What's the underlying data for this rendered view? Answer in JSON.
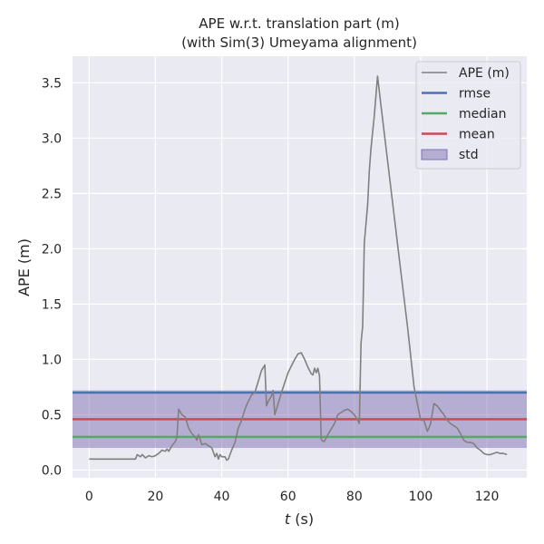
{
  "chart_data": {
    "type": "line",
    "title": "APE w.r.t. translation part (m)",
    "subtitle": "(with Sim(3) Umeyama alignment)",
    "xlabel_italic": "t",
    "xlabel_unit": " (s)",
    "ylabel": "APE (m)",
    "xlim": [
      -5,
      132
    ],
    "ylim": [
      -0.07,
      3.74
    ],
    "xticks": [
      0,
      20,
      40,
      60,
      80,
      100,
      120
    ],
    "yticks": [
      0.0,
      0.5,
      1.0,
      1.5,
      2.0,
      2.5,
      3.0,
      3.5
    ],
    "ytick_labels": [
      "0.0",
      "0.5",
      "1.0",
      "1.5",
      "2.0",
      "2.5",
      "3.0",
      "3.5"
    ],
    "grid": true,
    "legend_position": "top-right",
    "series": [
      {
        "name": "APE (m)",
        "color": "#808080",
        "x": [
          0,
          5,
          10,
          14,
          14.5,
          15.5,
          16,
          17,
          18,
          19,
          20,
          21,
          22,
          23,
          23.5,
          24,
          25,
          26,
          26.5,
          27,
          28,
          29,
          30,
          31,
          32,
          32.5,
          33,
          34,
          35,
          36,
          37,
          38,
          38.5,
          39,
          39.5,
          40,
          41,
          41.5,
          42,
          43,
          44,
          45,
          46,
          47,
          48,
          49,
          50,
          51,
          52,
          53,
          53.5,
          54,
          55,
          55.5,
          56,
          58,
          60,
          62,
          63,
          64,
          65,
          66,
          67,
          67.5,
          68,
          68.5,
          69,
          69.5,
          70,
          70.5,
          71,
          72,
          73,
          74,
          75,
          76,
          77,
          78,
          79,
          80,
          81,
          81.5,
          82,
          82.5,
          83,
          84,
          84.5,
          85,
          86,
          87,
          88,
          90,
          92,
          94,
          96,
          98,
          100,
          101,
          102,
          102.5,
          103,
          104,
          105,
          106,
          107,
          108,
          109,
          110,
          111,
          112,
          113,
          114,
          115,
          116,
          117,
          118,
          119,
          120,
          121,
          122,
          123,
          124,
          125,
          126
        ],
        "y": [
          0.1,
          0.1,
          0.1,
          0.1,
          0.14,
          0.12,
          0.14,
          0.11,
          0.13,
          0.12,
          0.13,
          0.15,
          0.18,
          0.17,
          0.19,
          0.17,
          0.22,
          0.26,
          0.3,
          0.55,
          0.5,
          0.48,
          0.38,
          0.33,
          0.3,
          0.27,
          0.32,
          0.23,
          0.24,
          0.22,
          0.2,
          0.12,
          0.15,
          0.1,
          0.14,
          0.12,
          0.12,
          0.09,
          0.1,
          0.18,
          0.25,
          0.38,
          0.45,
          0.55,
          0.62,
          0.68,
          0.7,
          0.8,
          0.9,
          0.95,
          0.58,
          0.62,
          0.67,
          0.72,
          0.5,
          0.7,
          0.88,
          1.0,
          1.05,
          1.06,
          1.0,
          0.93,
          0.87,
          0.86,
          0.92,
          0.88,
          0.92,
          0.85,
          0.28,
          0.26,
          0.26,
          0.32,
          0.37,
          0.42,
          0.5,
          0.52,
          0.54,
          0.55,
          0.53,
          0.5,
          0.45,
          0.42,
          1.15,
          1.3,
          2.05,
          2.4,
          2.7,
          2.9,
          3.2,
          3.56,
          3.3,
          2.8,
          2.3,
          1.8,
          1.3,
          0.75,
          0.45,
          0.45,
          0.35,
          0.38,
          0.42,
          0.6,
          0.58,
          0.54,
          0.5,
          0.45,
          0.42,
          0.4,
          0.38,
          0.33,
          0.27,
          0.25,
          0.25,
          0.24,
          0.2,
          0.18,
          0.15,
          0.14,
          0.14,
          0.15,
          0.16,
          0.15,
          0.15,
          0.14
        ]
      },
      {
        "name": "rmse",
        "color": "#4c72b0",
        "value": 0.7
      },
      {
        "name": "median",
        "color": "#55a868",
        "value": 0.3
      },
      {
        "name": "mean",
        "color": "#c44e52",
        "value": 0.46
      },
      {
        "name": "std",
        "color": "#8172b2",
        "range": [
          0.2,
          0.72
        ]
      }
    ]
  }
}
